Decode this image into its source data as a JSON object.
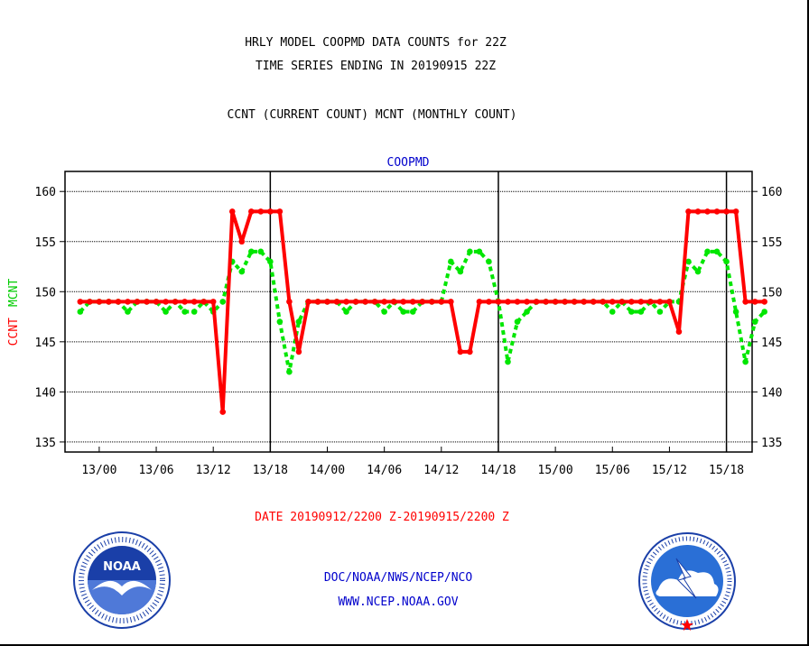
{
  "header": {
    "title_line1": "HRLY MODEL COOPMD DATA COUNTS for 22Z",
    "title_line2": "TIME SERIES ENDING IN 20190915 22Z",
    "subtitle": "CCNT (CURRENT COUNT) MCNT (MONTHLY COUNT)"
  },
  "footer": {
    "date_range": "DATE 20190912/2200 Z-20190915/2200 Z",
    "credit_line1": "DOC/NOAA/NWS/NCEP/NCO",
    "credit_line2": "WWW.NCEP.NOAA.GOV"
  },
  "logos": {
    "left": {
      "icon": "noaa-logo",
      "text": "NOAA",
      "ring_text": "NATIONAL OCEANIC AND ATMOSPHERIC ADMINISTRATION • U.S. DEPARTMENT OF COMMERCE"
    },
    "right": {
      "icon": "nws-logo",
      "ring_text": "NATIONAL WEATHER SERVICE"
    }
  },
  "colors": {
    "ccnt": "#ff0000",
    "mcnt": "#00e600",
    "label_blue": "#0000cc",
    "noaa_blue": "#1a3fa8",
    "nws_blue": "#2a6fd6"
  },
  "chart_data": {
    "type": "line",
    "title": "COOPMD",
    "xlabel": "",
    "ylabel": "CCNT  MCNT",
    "ylabel_parts": [
      "CCNT",
      "MCNT"
    ],
    "ylim": [
      134,
      162
    ],
    "yticks": [
      135,
      140,
      145,
      150,
      155,
      160
    ],
    "xlim_hours": [
      -1.6,
      70.7
    ],
    "xtick_labels": [
      "13/00",
      "13/06",
      "13/12",
      "13/18",
      "14/00",
      "14/06",
      "14/12",
      "14/18",
      "15/00",
      "15/06",
      "15/12",
      "15/18"
    ],
    "xtick_hours": [
      2,
      8,
      14,
      20,
      26,
      32,
      38,
      44,
      50,
      56,
      62,
      68
    ],
    "day_boundaries_hours": [
      20,
      44,
      68
    ],
    "grid": true,
    "series": [
      {
        "name": "CCNT",
        "color": "#ff0000",
        "x": [
          0,
          1,
          2,
          3,
          4,
          5,
          6,
          7,
          8,
          9,
          10,
          11,
          12,
          13,
          14,
          15,
          16,
          17,
          18,
          19,
          20,
          21,
          22,
          23,
          24,
          25,
          26,
          27,
          28,
          29,
          30,
          31,
          32,
          33,
          34,
          35,
          36,
          37,
          38,
          39,
          40,
          41,
          42,
          43,
          44,
          45,
          46,
          47,
          48,
          49,
          50,
          51,
          52,
          53,
          54,
          55,
          56,
          57,
          58,
          59,
          60,
          61,
          62,
          63,
          64,
          65,
          66,
          67,
          68,
          69,
          70,
          71,
          72
        ],
        "values": [
          149,
          149,
          149,
          149,
          149,
          149,
          149,
          149,
          149,
          149,
          149,
          149,
          149,
          149,
          149,
          138,
          158,
          155,
          158,
          158,
          158,
          158,
          149,
          144,
          149,
          149,
          149,
          149,
          149,
          149,
          149,
          149,
          149,
          149,
          149,
          149,
          149,
          149,
          149,
          149,
          144,
          144,
          149,
          149,
          149,
          149,
          149,
          149,
          149,
          149,
          149,
          149,
          149,
          149,
          149,
          149,
          149,
          149,
          149,
          149,
          149,
          149,
          149,
          146,
          158,
          158,
          158,
          158,
          158,
          158,
          149,
          149,
          149
        ]
      },
      {
        "name": "MCNT",
        "color": "#00e600",
        "x": [
          0,
          1,
          2,
          3,
          4,
          5,
          6,
          7,
          8,
          9,
          10,
          11,
          12,
          13,
          14,
          15,
          16,
          17,
          18,
          19,
          20,
          21,
          22,
          23,
          24,
          25,
          26,
          27,
          28,
          29,
          30,
          31,
          32,
          33,
          34,
          35,
          36,
          37,
          38,
          39,
          40,
          41,
          42,
          43,
          44,
          45,
          46,
          47,
          48,
          49,
          50,
          51,
          52,
          53,
          54,
          55,
          56,
          57,
          58,
          59,
          60,
          61,
          62,
          63,
          64,
          65,
          66,
          67,
          68,
          69,
          70,
          71,
          72
        ],
        "values": [
          148,
          149,
          149,
          149,
          149,
          148,
          149,
          149,
          149,
          148,
          149,
          148,
          148,
          149,
          148,
          149,
          153,
          152,
          154,
          154,
          153,
          147,
          142,
          147,
          149,
          149,
          149,
          149,
          148,
          149,
          149,
          149,
          148,
          149,
          148,
          148,
          149,
          149,
          149,
          153,
          152,
          154,
          154,
          153,
          149,
          143,
          147,
          148,
          149,
          149,
          149,
          149,
          149,
          149,
          149,
          149,
          148,
          149,
          148,
          148,
          149,
          148,
          149,
          149,
          153,
          152,
          154,
          154,
          153,
          148,
          143,
          147,
          148
        ]
      }
    ]
  }
}
